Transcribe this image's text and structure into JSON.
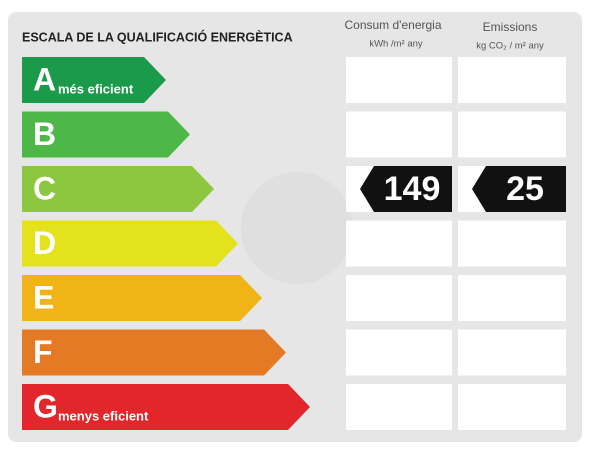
{
  "header": {
    "title": "ESCALA DE LA QUALIFICACIÓ ENERGÈTICA",
    "columns": [
      {
        "title": "Consum d'energia",
        "unit": "kWh /m² any"
      },
      {
        "title": "Emissions",
        "unit": "kg CO₂ / m² any"
      }
    ]
  },
  "rows": [
    {
      "letter": "A",
      "label": "més eficient",
      "color": "#1a9a4a"
    },
    {
      "letter": "B",
      "color": "#4db848"
    },
    {
      "letter": "C",
      "color": "#8dc63f",
      "values": [
        149,
        25
      ]
    },
    {
      "letter": "D",
      "color": "#e3e21c"
    },
    {
      "letter": "E",
      "color": "#f1b416"
    },
    {
      "letter": "F",
      "color": "#e57a24"
    },
    {
      "letter": "G",
      "label": "menys eficient",
      "color": "#e2262b"
    }
  ]
}
